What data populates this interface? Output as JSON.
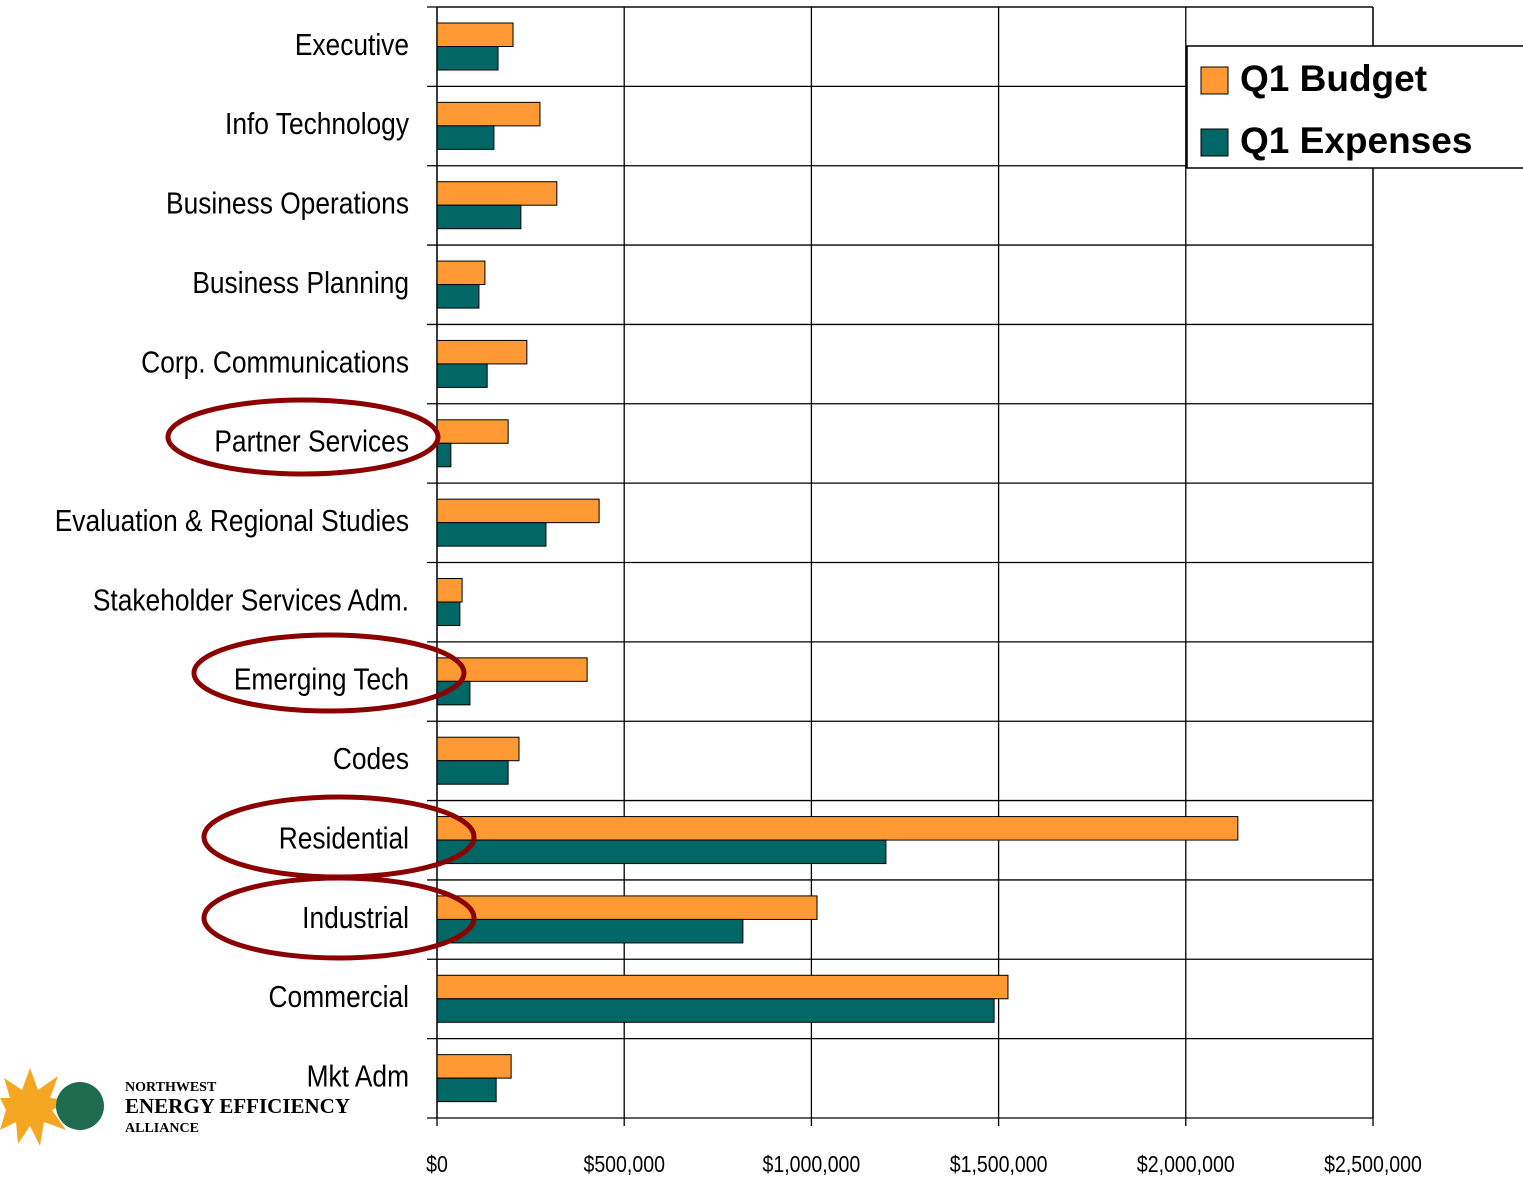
{
  "chart_data": {
    "type": "barh",
    "categories": [
      "Executive",
      "Info Technology",
      "Business Operations",
      "Business Planning",
      "Corp. Communications",
      "Partner Services",
      "Evaluation & Regional Studies",
      "Stakeholder Services Adm.",
      "Emerging Tech",
      "Codes",
      "Residential",
      "Industrial",
      "Commercial",
      "Mkt Adm"
    ],
    "series": [
      {
        "name": "Q1 Budget",
        "color": "#ff9933",
        "values": [
          203000,
          275000,
          320000,
          128000,
          240000,
          190000,
          433000,
          67000,
          401000,
          219000,
          2139000,
          1015000,
          1525000,
          198000
        ]
      },
      {
        "name": "Q1 Expenses",
        "color": "#006666",
        "values": [
          163000,
          152000,
          224000,
          112000,
          134000,
          37000,
          291000,
          61000,
          88000,
          190000,
          1199000,
          817000,
          1488000,
          158000
        ]
      }
    ],
    "xlim": [
      0,
      2500000
    ],
    "xticks": [
      {
        "value": 0,
        "label": "$0"
      },
      {
        "value": 500000,
        "label": "$500,000"
      },
      {
        "value": 1000000,
        "label": "$1,000,000"
      },
      {
        "value": 1500000,
        "label": "$1,500,000"
      },
      {
        "value": 2000000,
        "label": "$2,000,000"
      },
      {
        "value": 2500000,
        "label": "$2,500,000"
      }
    ],
    "grid": true,
    "legend": "top-right"
  },
  "logo": {
    "lines": [
      "NORTHWEST",
      "ENERGY EFFICIENCY",
      "ALLIANCE"
    ]
  }
}
